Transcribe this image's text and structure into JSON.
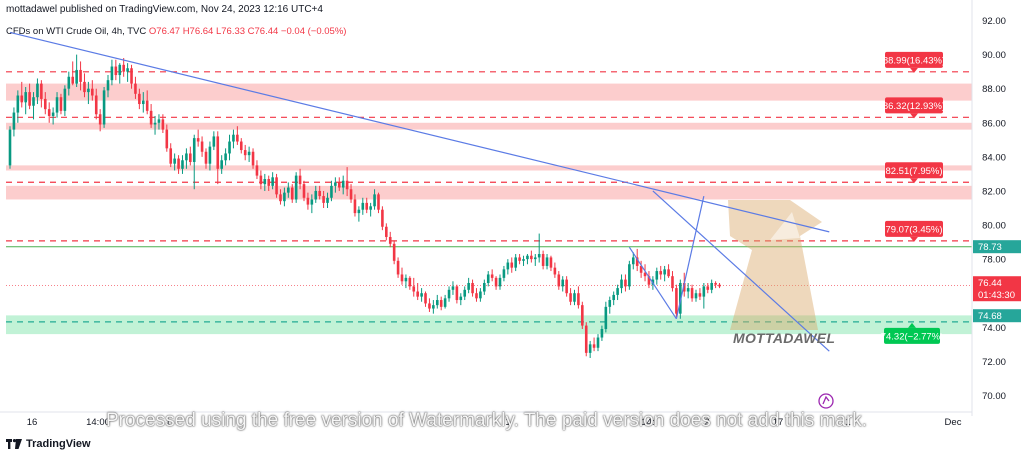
{
  "header": {
    "publisher_line": "mottadawel published on TradingView.com, Nov 24, 2023 12:16 UTC+4",
    "legend_symbol": "CFDs on WTI Crude Oil, 4h, TVC",
    "legend_values": "O76.47  H76.64  L76.33  C76.44  −0.04 (−0.05%)"
  },
  "footer": {
    "logo_text": "TradingView"
  },
  "watermark": {
    "notice": "Processed using the free version of Watermarkly. The paid version does not add this mark.",
    "brand": "MOTTADAWEL"
  },
  "colors": {
    "up": "#089981",
    "down": "#f23645",
    "trendline": "#5b7be5",
    "resistance_zone": "#fcc4c4",
    "support_zone": "#b6f0cf",
    "green_line": "#4caf50"
  },
  "chart_data": {
    "type": "candlestick",
    "title": "CFDs on WTI Crude Oil, 4h, TVC",
    "y_axis": {
      "ticks": [
        70,
        72,
        74,
        76,
        78,
        80,
        82,
        84,
        86,
        88,
        90,
        92
      ],
      "range": [
        69.5,
        92.5
      ],
      "position": "right"
    },
    "x_axis": {
      "labels": [
        "16",
        "14:00",
        "1",
        "",
        "1",
        "14:",
        "2",
        "17",
        "1",
        "Dec"
      ]
    },
    "price_labels": [
      {
        "text": "88.99(16.43%)",
        "value": 88.99,
        "style": "resistance"
      },
      {
        "text": "86.32(12.93%)",
        "value": 86.32,
        "style": "resistance"
      },
      {
        "text": "82.51(7.95%)",
        "value": 82.51,
        "style": "resistance"
      },
      {
        "text": "79.07(3.45%)",
        "value": 79.07,
        "style": "resistance"
      },
      {
        "text": "74.32(−2.77%)",
        "value": 74.32,
        "style": "support"
      }
    ],
    "axis_tags": [
      {
        "text": "78.73",
        "value": 78.73,
        "color": "green"
      },
      {
        "text": "76.44",
        "value": 76.44,
        "color": "red"
      },
      {
        "text": "01:43:30",
        "value": 76.44,
        "color": "red"
      },
      {
        "text": "74.68",
        "value": 74.68,
        "color": "green"
      }
    ],
    "zones": [
      {
        "type": "resistance",
        "from": 87.3,
        "to": 88.3
      },
      {
        "type": "resistance",
        "from": 85.6,
        "to": 86.0
      },
      {
        "type": "resistance",
        "from": 83.2,
        "to": 83.5
      },
      {
        "type": "resistance",
        "from": 81.5,
        "to": 82.3
      },
      {
        "type": "support",
        "from": 73.6,
        "to": 74.7
      }
    ],
    "dashed_levels": [
      88.99,
      86.32,
      82.51,
      79.07,
      74.32
    ],
    "solid_levels": [
      78.73
    ],
    "current_price_line": 76.44,
    "trendlines": [
      {
        "from": {
          "bar": 0,
          "price": 91.3
        },
        "to": {
          "bar": 209,
          "price": 79.6
        }
      },
      {
        "from": {
          "bar": 164,
          "price": 82.0
        },
        "to": {
          "bar": 209,
          "price": 72.6
        }
      },
      {
        "from": {
          "bar": 158,
          "price": 78.7
        },
        "to": {
          "bar": 170,
          "price": 74.5
        }
      },
      {
        "from": {
          "bar": 170,
          "price": 74.5
        },
        "to": {
          "bar": 177,
          "price": 81.7
        }
      }
    ],
    "candles": [
      [
        83.5,
        85.8,
        83.3,
        85.6
      ],
      [
        85.6,
        86.9,
        85.2,
        86.6
      ],
      [
        86.6,
        87.9,
        86.0,
        87.6
      ],
      [
        87.6,
        88.4,
        86.9,
        87.2
      ],
      [
        87.2,
        88.1,
        86.5,
        87.8
      ],
      [
        87.8,
        88.3,
        86.8,
        87.0
      ],
      [
        87.0,
        87.8,
        86.2,
        87.5
      ],
      [
        87.5,
        88.6,
        87.1,
        88.3
      ],
      [
        88.3,
        88.5,
        86.9,
        87.4
      ],
      [
        87.4,
        87.8,
        86.5,
        86.8
      ],
      [
        86.8,
        87.2,
        86.0,
        86.4
      ],
      [
        86.4,
        86.9,
        85.9,
        86.6
      ],
      [
        86.6,
        87.8,
        86.3,
        87.5
      ],
      [
        87.5,
        87.7,
        86.5,
        86.7
      ],
      [
        86.7,
        88.2,
        86.4,
        88.0
      ],
      [
        88.0,
        89.0,
        87.6,
        88.7
      ],
      [
        88.7,
        89.6,
        88.2,
        88.3
      ],
      [
        88.3,
        90.0,
        88.1,
        89.1
      ],
      [
        89.1,
        89.6,
        87.9,
        88.4
      ],
      [
        88.4,
        88.9,
        87.5,
        87.8
      ],
      [
        87.8,
        88.4,
        87.1,
        88.0
      ],
      [
        88.0,
        88.5,
        87.3,
        87.6
      ],
      [
        87.6,
        88.0,
        86.2,
        86.5
      ],
      [
        86.5,
        86.8,
        85.5,
        85.9
      ],
      [
        85.9,
        88.1,
        85.7,
        87.9
      ],
      [
        87.9,
        88.8,
        87.5,
        88.5
      ],
      [
        88.5,
        89.7,
        88.2,
        89.3
      ],
      [
        89.3,
        89.7,
        88.5,
        88.8
      ],
      [
        88.8,
        89.5,
        88.3,
        89.4
      ],
      [
        89.4,
        89.8,
        88.7,
        89.0
      ],
      [
        89.0,
        89.5,
        88.4,
        89.2
      ],
      [
        89.2,
        89.4,
        88.0,
        88.3
      ],
      [
        88.3,
        88.7,
        87.4,
        87.7
      ],
      [
        87.7,
        88.0,
        86.8,
        87.1
      ],
      [
        87.1,
        87.8,
        86.6,
        87.3
      ],
      [
        87.3,
        87.9,
        86.5,
        86.7
      ],
      [
        86.7,
        87.1,
        85.7,
        85.9
      ],
      [
        85.9,
        86.4,
        85.3,
        86.0
      ],
      [
        86.0,
        86.5,
        85.6,
        86.2
      ],
      [
        86.2,
        86.5,
        85.4,
        85.6
      ],
      [
        85.6,
        85.9,
        84.3,
        84.5
      ],
      [
        84.5,
        84.8,
        83.4,
        83.6
      ],
      [
        83.6,
        84.2,
        83.2,
        83.9
      ],
      [
        83.9,
        84.1,
        83.0,
        83.3
      ],
      [
        83.3,
        84.1,
        83.0,
        83.8
      ],
      [
        83.8,
        84.5,
        83.3,
        84.2
      ],
      [
        84.2,
        84.6,
        83.5,
        83.7
      ],
      [
        83.7,
        85.3,
        82.1,
        85.1
      ],
      [
        85.1,
        85.6,
        84.6,
        84.9
      ],
      [
        84.9,
        85.2,
        84.0,
        84.3
      ],
      [
        84.3,
        84.5,
        83.3,
        83.6
      ],
      [
        83.6,
        84.9,
        83.2,
        84.6
      ],
      [
        84.6,
        85.5,
        84.4,
        85.2
      ],
      [
        85.2,
        85.5,
        82.4,
        83.3
      ],
      [
        83.3,
        84.1,
        83.0,
        83.8
      ],
      [
        83.8,
        84.5,
        83.5,
        84.2
      ],
      [
        84.2,
        85.3,
        83.8,
        84.9
      ],
      [
        84.9,
        85.6,
        84.5,
        85.3
      ],
      [
        85.3,
        85.8,
        84.7,
        84.9
      ],
      [
        84.9,
        85.1,
        84.2,
        84.4
      ],
      [
        84.4,
        84.7,
        83.8,
        84.1
      ],
      [
        84.1,
        84.6,
        83.7,
        84.3
      ],
      [
        84.3,
        84.5,
        83.3,
        83.5
      ],
      [
        83.5,
        83.8,
        82.7,
        82.9
      ],
      [
        82.9,
        83.2,
        82.1,
        82.4
      ],
      [
        82.4,
        83.0,
        82.0,
        82.7
      ],
      [
        82.7,
        82.9,
        82.0,
        82.3
      ],
      [
        82.3,
        83.1,
        82.1,
        82.8
      ],
      [
        82.8,
        83.0,
        81.6,
        81.8
      ],
      [
        81.8,
        82.1,
        81.2,
        81.4
      ],
      [
        81.4,
        82.2,
        81.1,
        81.9
      ],
      [
        81.9,
        82.5,
        81.6,
        82.2
      ],
      [
        82.2,
        82.4,
        81.3,
        81.5
      ],
      [
        81.5,
        83.1,
        81.3,
        82.9
      ],
      [
        82.9,
        83.3,
        82.1,
        82.4
      ],
      [
        82.4,
        82.6,
        81.4,
        81.6
      ],
      [
        81.6,
        81.9,
        80.9,
        81.2
      ],
      [
        81.2,
        81.8,
        80.7,
        81.5
      ],
      [
        81.5,
        82.3,
        81.3,
        82.0
      ],
      [
        82.0,
        82.3,
        81.5,
        81.7
      ],
      [
        81.7,
        82.0,
        81.0,
        81.3
      ],
      [
        81.3,
        81.9,
        81.0,
        81.6
      ],
      [
        81.6,
        82.6,
        81.4,
        82.3
      ],
      [
        82.3,
        82.8,
        81.9,
        82.5
      ],
      [
        82.5,
        82.8,
        82.0,
        82.2
      ],
      [
        82.2,
        82.9,
        81.8,
        82.6
      ],
      [
        82.6,
        83.4,
        81.7,
        82.1
      ],
      [
        82.1,
        82.4,
        81.3,
        81.5
      ],
      [
        81.5,
        81.8,
        80.5,
        80.7
      ],
      [
        80.7,
        81.1,
        80.2,
        80.9
      ],
      [
        80.9,
        81.6,
        80.6,
        81.3
      ],
      [
        81.3,
        81.6,
        80.7,
        80.9
      ],
      [
        80.9,
        81.3,
        80.5,
        81.1
      ],
      [
        81.1,
        82.1,
        80.9,
        81.8
      ],
      [
        81.8,
        81.9,
        80.7,
        80.9
      ],
      [
        80.9,
        81.1,
        79.7,
        79.9
      ],
      [
        79.9,
        80.1,
        79.1,
        79.3
      ],
      [
        79.3,
        79.6,
        78.7,
        78.9
      ],
      [
        78.9,
        79.1,
        77.7,
        77.9
      ],
      [
        77.9,
        78.1,
        76.9,
        77.1
      ],
      [
        77.1,
        77.5,
        76.5,
        76.7
      ],
      [
        76.7,
        77.1,
        76.3,
        76.9
      ],
      [
        76.9,
        77.0,
        76.2,
        76.4
      ],
      [
        76.4,
        76.9,
        75.8,
        76.1
      ],
      [
        76.1,
        76.6,
        75.6,
        75.8
      ],
      [
        75.8,
        76.3,
        75.5,
        76.0
      ],
      [
        76.0,
        76.1,
        75.2,
        75.4
      ],
      [
        75.4,
        75.7,
        74.9,
        75.1
      ],
      [
        75.1,
        75.6,
        74.8,
        75.3
      ],
      [
        75.3,
        75.9,
        75.1,
        75.6
      ],
      [
        75.6,
        75.8,
        75.0,
        75.2
      ],
      [
        75.2,
        75.9,
        75.1,
        75.7
      ],
      [
        75.7,
        76.4,
        75.5,
        76.2
      ],
      [
        76.2,
        76.7,
        75.9,
        76.4
      ],
      [
        76.4,
        76.5,
        75.4,
        75.6
      ],
      [
        75.6,
        76.0,
        75.3,
        75.8
      ],
      [
        75.8,
        76.4,
        75.6,
        76.2
      ],
      [
        76.2,
        76.9,
        76.0,
        76.6
      ],
      [
        76.6,
        76.8,
        75.8,
        76.0
      ],
      [
        76.0,
        76.3,
        75.5,
        75.7
      ],
      [
        75.7,
        76.3,
        75.5,
        76.1
      ],
      [
        76.1,
        76.8,
        75.9,
        76.6
      ],
      [
        76.6,
        77.3,
        76.4,
        77.1
      ],
      [
        77.1,
        77.4,
        76.7,
        76.9
      ],
      [
        76.9,
        77.0,
        76.2,
        76.4
      ],
      [
        76.4,
        77.1,
        76.2,
        76.9
      ],
      [
        76.9,
        77.6,
        76.7,
        77.4
      ],
      [
        77.4,
        78.0,
        77.1,
        77.8
      ],
      [
        77.8,
        78.1,
        77.2,
        77.5
      ],
      [
        77.5,
        78.3,
        77.3,
        78.1
      ],
      [
        78.1,
        78.3,
        77.7,
        77.9
      ],
      [
        77.9,
        78.2,
        77.6,
        78.0
      ],
      [
        78.0,
        78.3,
        77.7,
        78.2
      ],
      [
        78.2,
        78.5,
        77.8,
        78.0
      ],
      [
        78.0,
        78.3,
        77.6,
        78.1
      ],
      [
        78.1,
        79.5,
        77.8,
        78.3
      ],
      [
        78.3,
        78.5,
        77.4,
        77.6
      ],
      [
        77.6,
        78.3,
        77.4,
        78.1
      ],
      [
        78.1,
        78.2,
        77.3,
        77.5
      ],
      [
        77.5,
        77.8,
        76.9,
        77.1
      ],
      [
        77.1,
        77.3,
        76.2,
        76.4
      ],
      [
        76.4,
        77.0,
        76.1,
        76.8
      ],
      [
        76.8,
        77.0,
        75.8,
        76.0
      ],
      [
        76.0,
        76.3,
        75.3,
        75.5
      ],
      [
        75.5,
        76.2,
        75.3,
        76.0
      ],
      [
        76.0,
        76.4,
        75.1,
        75.3
      ],
      [
        75.3,
        75.5,
        73.9,
        74.1
      ],
      [
        74.1,
        74.3,
        72.3,
        72.5
      ],
      [
        72.5,
        73.2,
        72.2,
        73.0
      ],
      [
        73.0,
        73.4,
        72.6,
        72.8
      ],
      [
        72.8,
        73.6,
        72.6,
        73.4
      ],
      [
        73.4,
        74.1,
        73.2,
        73.9
      ],
      [
        73.9,
        75.5,
        73.7,
        75.2
      ],
      [
        75.2,
        75.8,
        74.8,
        75.6
      ],
      [
        75.6,
        76.1,
        75.3,
        75.9
      ],
      [
        75.9,
        76.5,
        75.6,
        76.3
      ],
      [
        76.3,
        77.1,
        76.0,
        76.8
      ],
      [
        76.8,
        77.1,
        76.1,
        76.4
      ],
      [
        76.4,
        77.9,
        76.2,
        77.7
      ],
      [
        77.7,
        78.4,
        77.4,
        78.1
      ],
      [
        78.1,
        78.6,
        77.3,
        77.6
      ],
      [
        77.6,
        77.9,
        76.9,
        77.2
      ],
      [
        77.2,
        77.7,
        76.7,
        77.0
      ],
      [
        77.0,
        77.3,
        76.3,
        76.5
      ],
      [
        76.5,
        77.0,
        76.2,
        76.8
      ],
      [
        76.8,
        77.5,
        76.5,
        77.3
      ],
      [
        77.3,
        77.6,
        76.8,
        77.1
      ],
      [
        77.1,
        77.6,
        76.7,
        77.4
      ],
      [
        77.4,
        77.7,
        76.9,
        77.0
      ],
      [
        77.0,
        77.3,
        76.1,
        76.3
      ],
      [
        76.3,
        76.5,
        74.6,
        74.8
      ],
      [
        74.8,
        76.8,
        74.5,
        76.6
      ],
      [
        76.6,
        77.2,
        75.8,
        76.1
      ],
      [
        76.1,
        76.6,
        75.7,
        76.3
      ],
      [
        76.3,
        76.5,
        75.5,
        75.7
      ],
      [
        75.7,
        76.2,
        75.5,
        76.0
      ],
      [
        76.0,
        76.3,
        75.6,
        75.8
      ],
      [
        75.8,
        76.6,
        75.1,
        76.4
      ],
      [
        76.4,
        76.6,
        76.0,
        76.2
      ],
      [
        76.2,
        76.8,
        76.0,
        76.6
      ],
      [
        76.6,
        76.7,
        76.3,
        76.5
      ],
      [
        76.5,
        76.6,
        76.3,
        76.4
      ]
    ]
  }
}
